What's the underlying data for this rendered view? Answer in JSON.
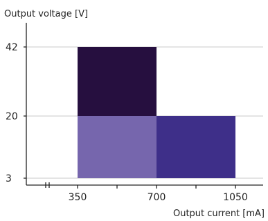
{
  "chart_data": {
    "type": "heatmap",
    "ylabel": "Output voltage [V]",
    "xlabel": "Output current [mA]",
    "x_ticks": [
      {
        "value": 350,
        "label": "350"
      },
      {
        "value": 700,
        "label": "700"
      },
      {
        "value": 1050,
        "label": "1050"
      }
    ],
    "y_ticks": [
      {
        "value": 3,
        "label": "3"
      },
      {
        "value": 20,
        "label": "20"
      },
      {
        "value": 42,
        "label": "42"
      }
    ],
    "grid": true,
    "x_axis_break": true,
    "rects": [
      {
        "x0": 350,
        "x1": 700,
        "y0": 20,
        "y1": 42,
        "color": "#260f3f"
      },
      {
        "x0": 350,
        "x1": 700,
        "y0": 3,
        "y1": 20,
        "color": "#7666ad"
      },
      {
        "x0": 700,
        "x1": 1050,
        "y0": 3,
        "y1": 20,
        "color": "#3e2f89"
      }
    ]
  }
}
